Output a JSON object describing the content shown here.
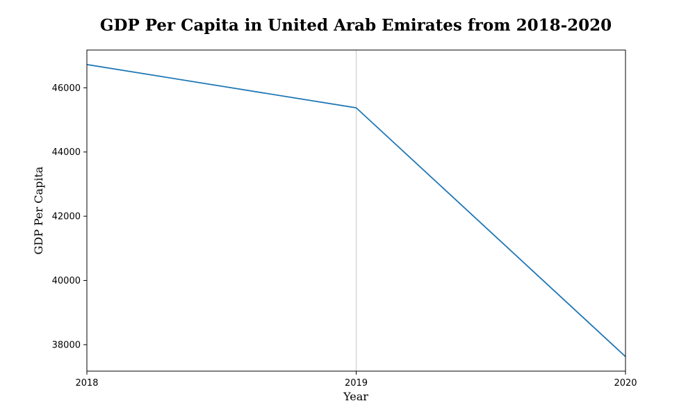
{
  "chart_data": {
    "type": "line",
    "title": "GDP Per Capita in United Arab Emirates from 2018-2020",
    "xlabel": "Year",
    "ylabel": "GDP Per Capita",
    "x": [
      2018,
      2019,
      2020
    ],
    "x_tick_labels": [
      "2018",
      "2019",
      "2020"
    ],
    "y_ticks": [
      38000,
      40000,
      42000,
      44000,
      46000
    ],
    "y_tick_labels": [
      "38000",
      "40000",
      "42000",
      "44000",
      "46000"
    ],
    "series": [
      {
        "values": [
          46722,
          45376,
          37629
        ],
        "color": "#1f77b4"
      }
    ],
    "xlim": [
      2018,
      2020
    ],
    "ylim": [
      37176,
      47175
    ],
    "grid": "vertical line at 2019",
    "legend": "none"
  }
}
